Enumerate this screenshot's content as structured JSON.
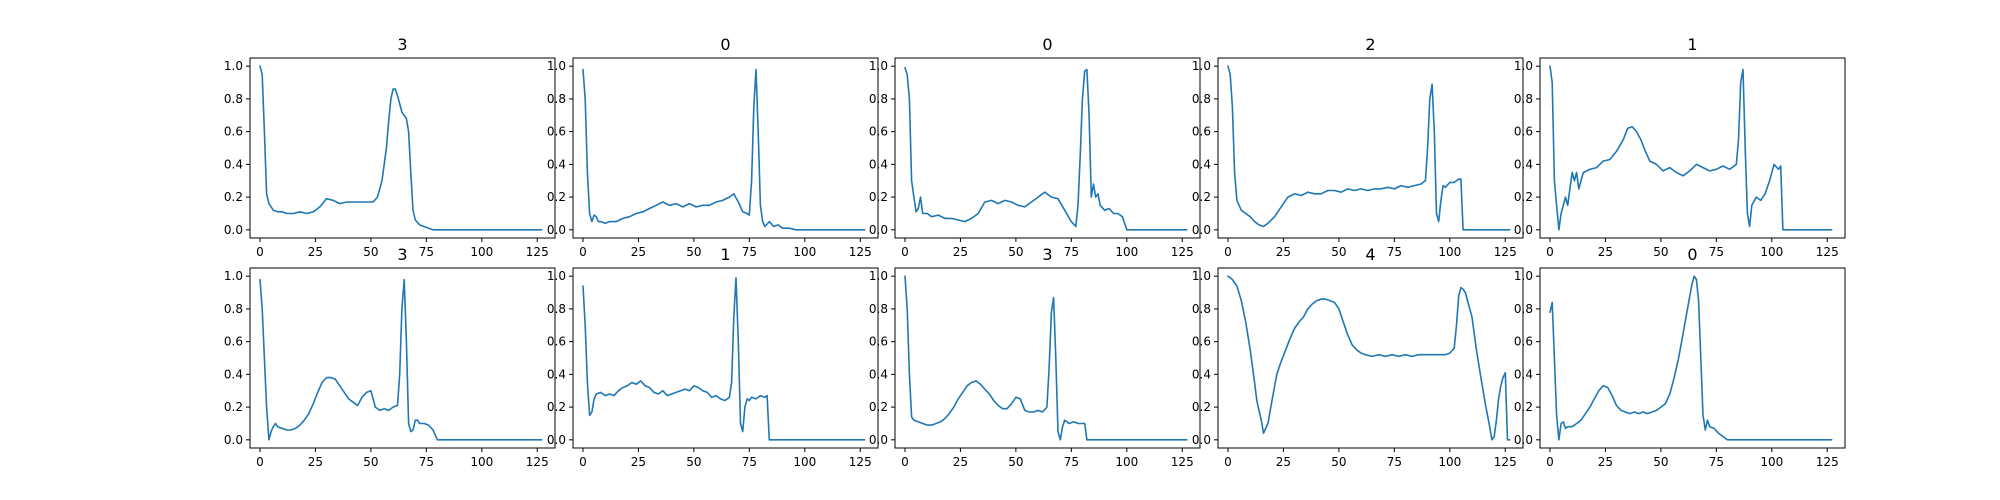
{
  "figure": {
    "line_color": "#1f77b4",
    "background": "#ffffff"
  },
  "chart_data": [
    {
      "type": "line",
      "title": "3",
      "xlabel": "",
      "ylabel": "",
      "xlim": [
        -4.5,
        133
      ],
      "ylim": [
        -0.05,
        1.05
      ],
      "xticks": [
        0,
        25,
        50,
        75,
        100,
        125
      ],
      "yticks": [
        0.0,
        0.2,
        0.4,
        0.6,
        0.8,
        1.0
      ],
      "grid": false,
      "x": [
        0,
        1,
        2,
        3,
        4,
        6,
        8,
        10,
        12,
        15,
        18,
        21,
        24,
        27,
        30,
        33,
        36,
        39,
        42,
        45,
        48,
        51,
        53,
        55,
        57,
        58,
        59,
        60,
        61,
        62,
        63,
        64,
        65,
        66,
        67,
        68,
        69,
        70,
        72,
        74,
        76,
        78,
        127
      ],
      "y": [
        1.0,
        0.95,
        0.6,
        0.22,
        0.16,
        0.12,
        0.11,
        0.11,
        0.1,
        0.1,
        0.11,
        0.1,
        0.11,
        0.14,
        0.19,
        0.18,
        0.16,
        0.17,
        0.17,
        0.17,
        0.17,
        0.17,
        0.2,
        0.3,
        0.5,
        0.66,
        0.8,
        0.86,
        0.86,
        0.82,
        0.77,
        0.72,
        0.7,
        0.68,
        0.6,
        0.35,
        0.12,
        0.06,
        0.03,
        0.02,
        0.01,
        0.0,
        0.0
      ]
    },
    {
      "type": "line",
      "title": "0",
      "xlabel": "",
      "ylabel": "",
      "xlim": [
        -4.5,
        133
      ],
      "ylim": [
        -0.05,
        1.05
      ],
      "xticks": [
        0,
        25,
        50,
        75,
        100,
        125
      ],
      "yticks": [
        0.0,
        0.2,
        0.4,
        0.6,
        0.8,
        1.0
      ],
      "grid": false,
      "x": [
        0,
        1,
        2,
        3,
        4,
        5,
        6,
        7,
        8,
        10,
        12,
        15,
        18,
        21,
        24,
        27,
        30,
        33,
        36,
        39,
        42,
        45,
        48,
        51,
        54,
        57,
        60,
        63,
        66,
        68,
        70,
        72,
        74,
        75,
        76,
        77,
        78,
        79,
        80,
        81,
        82,
        84,
        86,
        88,
        90,
        93,
        96,
        127
      ],
      "y": [
        0.98,
        0.8,
        0.35,
        0.1,
        0.05,
        0.09,
        0.08,
        0.05,
        0.05,
        0.04,
        0.05,
        0.05,
        0.07,
        0.08,
        0.1,
        0.11,
        0.13,
        0.15,
        0.17,
        0.15,
        0.16,
        0.14,
        0.16,
        0.14,
        0.15,
        0.15,
        0.17,
        0.18,
        0.2,
        0.22,
        0.17,
        0.11,
        0.1,
        0.09,
        0.3,
        0.75,
        0.98,
        0.6,
        0.15,
        0.05,
        0.02,
        0.05,
        0.02,
        0.03,
        0.01,
        0.01,
        0.0,
        0.0
      ]
    },
    {
      "type": "line",
      "title": "0",
      "xlabel": "",
      "ylabel": "",
      "xlim": [
        -4.5,
        133
      ],
      "ylim": [
        -0.05,
        1.05
      ],
      "xticks": [
        0,
        25,
        50,
        75,
        100,
        125
      ],
      "yticks": [
        0.0,
        0.2,
        0.4,
        0.6,
        0.8,
        1.0
      ],
      "grid": false,
      "x": [
        0,
        1,
        2,
        3,
        4,
        5,
        6,
        7,
        8,
        10,
        12,
        15,
        18,
        21,
        24,
        27,
        30,
        33,
        36,
        39,
        42,
        45,
        48,
        51,
        54,
        57,
        60,
        63,
        66,
        69,
        72,
        75,
        77,
        78,
        79,
        80,
        81,
        82,
        83,
        84,
        85,
        86,
        87,
        88,
        90,
        92,
        94,
        96,
        98,
        100,
        127
      ],
      "y": [
        0.99,
        0.95,
        0.8,
        0.3,
        0.2,
        0.11,
        0.13,
        0.2,
        0.1,
        0.1,
        0.08,
        0.09,
        0.07,
        0.07,
        0.06,
        0.05,
        0.07,
        0.1,
        0.17,
        0.18,
        0.16,
        0.18,
        0.17,
        0.15,
        0.14,
        0.17,
        0.2,
        0.23,
        0.2,
        0.19,
        0.12,
        0.05,
        0.02,
        0.15,
        0.45,
        0.8,
        0.97,
        0.98,
        0.7,
        0.2,
        0.28,
        0.2,
        0.22,
        0.15,
        0.12,
        0.13,
        0.1,
        0.1,
        0.08,
        0.0,
        0.0
      ]
    },
    {
      "type": "line",
      "title": "2",
      "xlabel": "",
      "ylabel": "",
      "xlim": [
        -4.5,
        133
      ],
      "ylim": [
        -0.05,
        1.05
      ],
      "xticks": [
        0,
        25,
        50,
        75,
        100,
        125
      ],
      "yticks": [
        0.0,
        0.2,
        0.4,
        0.6,
        0.8,
        1.0
      ],
      "grid": false,
      "x": [
        0,
        1,
        2,
        3,
        4,
        6,
        8,
        10,
        12,
        14,
        16,
        18,
        21,
        24,
        27,
        30,
        33,
        36,
        39,
        42,
        45,
        48,
        51,
        54,
        57,
        60,
        63,
        66,
        69,
        72,
        75,
        78,
        81,
        84,
        87,
        89,
        90,
        91,
        92,
        93,
        94,
        95,
        96,
        97,
        98,
        100,
        102,
        104,
        105,
        106,
        127
      ],
      "y": [
        1.0,
        0.95,
        0.75,
        0.35,
        0.18,
        0.12,
        0.1,
        0.08,
        0.05,
        0.03,
        0.02,
        0.04,
        0.08,
        0.14,
        0.2,
        0.22,
        0.21,
        0.23,
        0.22,
        0.22,
        0.24,
        0.24,
        0.23,
        0.25,
        0.24,
        0.25,
        0.24,
        0.25,
        0.25,
        0.26,
        0.25,
        0.27,
        0.26,
        0.27,
        0.28,
        0.3,
        0.5,
        0.8,
        0.89,
        0.6,
        0.1,
        0.05,
        0.18,
        0.27,
        0.26,
        0.29,
        0.29,
        0.31,
        0.31,
        0.0,
        0.0
      ]
    },
    {
      "type": "line",
      "title": "1",
      "xlabel": "",
      "ylabel": "",
      "xlim": [
        -4.5,
        133
      ],
      "ylim": [
        -0.05,
        1.05
      ],
      "xticks": [
        0,
        25,
        50,
        75,
        100,
        125
      ],
      "yticks": [
        0.0,
        0.2,
        0.4,
        0.6,
        0.8,
        1.0
      ],
      "grid": false,
      "x": [
        0,
        1,
        2,
        3,
        4,
        5,
        6,
        7,
        8,
        9,
        10,
        11,
        12,
        13,
        15,
        18,
        21,
        24,
        27,
        30,
        33,
        35,
        37,
        39,
        41,
        43,
        45,
        48,
        51,
        54,
        57,
        60,
        63,
        66,
        69,
        72,
        75,
        78,
        81,
        84,
        85,
        86,
        87,
        88,
        89,
        90,
        91,
        93,
        95,
        97,
        99,
        101,
        103,
        104,
        105,
        127
      ],
      "y": [
        1.0,
        0.9,
        0.3,
        0.15,
        0.0,
        0.1,
        0.15,
        0.2,
        0.15,
        0.25,
        0.35,
        0.3,
        0.35,
        0.25,
        0.35,
        0.37,
        0.38,
        0.42,
        0.43,
        0.48,
        0.55,
        0.62,
        0.63,
        0.6,
        0.55,
        0.48,
        0.42,
        0.4,
        0.36,
        0.38,
        0.35,
        0.33,
        0.36,
        0.4,
        0.38,
        0.36,
        0.37,
        0.39,
        0.37,
        0.4,
        0.55,
        0.9,
        0.98,
        0.5,
        0.1,
        0.02,
        0.15,
        0.2,
        0.18,
        0.22,
        0.3,
        0.4,
        0.37,
        0.39,
        0.0,
        0.0
      ]
    },
    {
      "type": "line",
      "title": "3",
      "xlabel": "",
      "ylabel": "",
      "xlim": [
        -4.5,
        133
      ],
      "ylim": [
        -0.05,
        1.05
      ],
      "xticks": [
        0,
        25,
        50,
        75,
        100,
        125
      ],
      "yticks": [
        0.0,
        0.2,
        0.4,
        0.6,
        0.8,
        1.0
      ],
      "grid": false,
      "x": [
        0,
        1,
        2,
        3,
        4,
        5,
        6,
        7,
        8,
        10,
        12,
        14,
        16,
        18,
        20,
        22,
        24,
        26,
        28,
        30,
        32,
        34,
        36,
        38,
        40,
        42,
        44,
        46,
        48,
        50,
        52,
        54,
        56,
        58,
        60,
        62,
        63,
        64,
        65,
        66,
        67,
        68,
        69,
        70,
        71,
        72,
        74,
        76,
        78,
        80,
        127
      ],
      "y": [
        0.98,
        0.8,
        0.5,
        0.2,
        0.0,
        0.05,
        0.08,
        0.1,
        0.08,
        0.07,
        0.06,
        0.06,
        0.07,
        0.09,
        0.12,
        0.16,
        0.22,
        0.29,
        0.35,
        0.38,
        0.38,
        0.37,
        0.33,
        0.29,
        0.25,
        0.23,
        0.21,
        0.26,
        0.29,
        0.3,
        0.2,
        0.18,
        0.19,
        0.18,
        0.2,
        0.21,
        0.4,
        0.8,
        0.98,
        0.6,
        0.1,
        0.05,
        0.06,
        0.12,
        0.12,
        0.1,
        0.1,
        0.09,
        0.06,
        0.0,
        0.0
      ]
    },
    {
      "type": "line",
      "title": "1",
      "xlabel": "",
      "ylabel": "",
      "xlim": [
        -4.5,
        133
      ],
      "ylim": [
        -0.05,
        1.05
      ],
      "xticks": [
        0,
        25,
        50,
        75,
        100,
        125
      ],
      "yticks": [
        0.0,
        0.2,
        0.4,
        0.6,
        0.8,
        1.0
      ],
      "grid": false,
      "x": [
        0,
        1,
        2,
        3,
        4,
        5,
        6,
        8,
        10,
        12,
        14,
        16,
        18,
        20,
        22,
        24,
        26,
        28,
        30,
        32,
        34,
        36,
        38,
        40,
        42,
        44,
        46,
        48,
        50,
        52,
        54,
        56,
        58,
        60,
        62,
        64,
        66,
        67,
        68,
        69,
        70,
        71,
        72,
        73,
        74,
        75,
        76,
        78,
        80,
        82,
        83,
        84,
        127
      ],
      "y": [
        0.94,
        0.7,
        0.35,
        0.15,
        0.17,
        0.25,
        0.28,
        0.29,
        0.27,
        0.28,
        0.27,
        0.3,
        0.32,
        0.33,
        0.35,
        0.34,
        0.36,
        0.33,
        0.32,
        0.29,
        0.28,
        0.3,
        0.27,
        0.28,
        0.29,
        0.3,
        0.31,
        0.3,
        0.33,
        0.32,
        0.3,
        0.29,
        0.26,
        0.27,
        0.25,
        0.24,
        0.26,
        0.35,
        0.75,
        0.99,
        0.6,
        0.1,
        0.05,
        0.2,
        0.25,
        0.24,
        0.26,
        0.25,
        0.27,
        0.26,
        0.27,
        0.0,
        0.0
      ]
    },
    {
      "type": "line",
      "title": "3",
      "xlabel": "",
      "ylabel": "",
      "xlim": [
        -4.5,
        133
      ],
      "ylim": [
        -0.05,
        1.05
      ],
      "xticks": [
        0,
        25,
        50,
        75,
        100,
        125
      ],
      "yticks": [
        0.0,
        0.2,
        0.4,
        0.6,
        0.8,
        1.0
      ],
      "grid": false,
      "x": [
        0,
        1,
        2,
        3,
        4,
        6,
        8,
        10,
        12,
        14,
        16,
        18,
        20,
        22,
        24,
        26,
        28,
        30,
        32,
        34,
        36,
        38,
        40,
        42,
        44,
        46,
        48,
        50,
        52,
        54,
        56,
        58,
        60,
        62,
        64,
        65,
        66,
        67,
        68,
        69,
        70,
        71,
        72,
        74,
        76,
        78,
        80,
        81,
        82,
        127
      ],
      "y": [
        1.0,
        0.8,
        0.4,
        0.14,
        0.12,
        0.11,
        0.1,
        0.09,
        0.09,
        0.1,
        0.11,
        0.13,
        0.16,
        0.2,
        0.25,
        0.29,
        0.33,
        0.35,
        0.36,
        0.34,
        0.31,
        0.28,
        0.24,
        0.21,
        0.19,
        0.19,
        0.22,
        0.26,
        0.25,
        0.18,
        0.17,
        0.17,
        0.18,
        0.17,
        0.2,
        0.45,
        0.78,
        0.87,
        0.5,
        0.05,
        0.0,
        0.08,
        0.12,
        0.1,
        0.11,
        0.1,
        0.1,
        0.1,
        0.0,
        0.0
      ]
    },
    {
      "type": "line",
      "title": "4",
      "xlabel": "",
      "ylabel": "",
      "xlim": [
        -4.5,
        133
      ],
      "ylim": [
        -0.05,
        1.05
      ],
      "xticks": [
        0,
        25,
        50,
        75,
        100,
        125
      ],
      "yticks": [
        0.0,
        0.2,
        0.4,
        0.6,
        0.8,
        1.0
      ],
      "grid": false,
      "x": [
        0,
        2,
        4,
        6,
        8,
        10,
        12,
        13,
        14,
        15,
        16,
        18,
        20,
        22,
        24,
        26,
        28,
        30,
        32,
        34,
        36,
        38,
        40,
        42,
        44,
        46,
        48,
        50,
        52,
        54,
        56,
        58,
        60,
        62,
        65,
        68,
        71,
        74,
        77,
        80,
        83,
        86,
        89,
        92,
        95,
        98,
        100,
        102,
        103,
        104,
        105,
        106,
        107,
        108,
        110,
        112,
        114,
        116,
        118,
        119,
        120,
        121,
        122,
        123,
        124,
        125,
        126,
        127
      ],
      "y": [
        1.0,
        0.98,
        0.94,
        0.85,
        0.72,
        0.55,
        0.35,
        0.24,
        0.18,
        0.12,
        0.04,
        0.1,
        0.25,
        0.4,
        0.48,
        0.55,
        0.62,
        0.68,
        0.72,
        0.75,
        0.8,
        0.83,
        0.85,
        0.86,
        0.86,
        0.85,
        0.84,
        0.8,
        0.72,
        0.64,
        0.58,
        0.55,
        0.53,
        0.52,
        0.51,
        0.52,
        0.51,
        0.52,
        0.51,
        0.52,
        0.51,
        0.52,
        0.52,
        0.52,
        0.52,
        0.52,
        0.53,
        0.56,
        0.7,
        0.88,
        0.93,
        0.92,
        0.9,
        0.85,
        0.75,
        0.55,
        0.38,
        0.22,
        0.08,
        0.0,
        0.02,
        0.12,
        0.25,
        0.33,
        0.38,
        0.41,
        0.0,
        0.0
      ]
    },
    {
      "type": "line",
      "title": "0",
      "xlabel": "",
      "ylabel": "",
      "xlim": [
        -4.5,
        133
      ],
      "ylim": [
        -0.05,
        1.05
      ],
      "xticks": [
        0,
        25,
        50,
        75,
        100,
        125
      ],
      "yticks": [
        0.0,
        0.2,
        0.4,
        0.6,
        0.8,
        1.0
      ],
      "grid": false,
      "x": [
        0,
        1,
        2,
        3,
        4,
        5,
        6,
        7,
        8,
        10,
        12,
        14,
        16,
        18,
        20,
        22,
        24,
        26,
        28,
        30,
        32,
        34,
        36,
        38,
        40,
        42,
        44,
        46,
        48,
        50,
        52,
        54,
        56,
        58,
        60,
        62,
        64,
        65,
        66,
        67,
        68,
        69,
        70,
        71,
        72,
        74,
        76,
        78,
        80,
        127
      ],
      "y": [
        0.78,
        0.84,
        0.5,
        0.15,
        0.0,
        0.1,
        0.11,
        0.07,
        0.08,
        0.08,
        0.1,
        0.12,
        0.16,
        0.2,
        0.25,
        0.3,
        0.33,
        0.32,
        0.27,
        0.21,
        0.18,
        0.17,
        0.16,
        0.17,
        0.16,
        0.17,
        0.16,
        0.17,
        0.18,
        0.2,
        0.22,
        0.28,
        0.38,
        0.5,
        0.65,
        0.8,
        0.95,
        1.0,
        0.98,
        0.85,
        0.5,
        0.15,
        0.06,
        0.12,
        0.08,
        0.07,
        0.04,
        0.02,
        0.0,
        0.0
      ]
    }
  ]
}
